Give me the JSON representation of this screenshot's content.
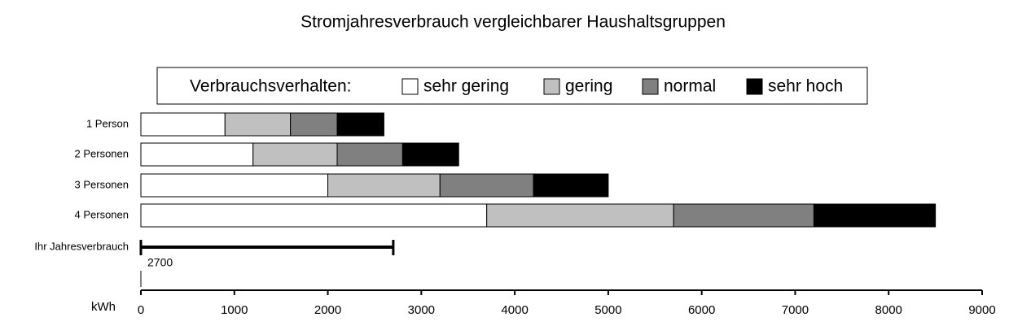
{
  "chart_data": {
    "type": "stacked-bar-horizontal",
    "title": "Stromjahresverbrauch vergleichbarer Haushaltsgruppen",
    "legend_title": "Verbrauchsverhalten:",
    "categories": [
      "1 Person",
      "2 Personen",
      "3 Personen",
      "4 Personen"
    ],
    "series": [
      {
        "name": "sehr gering",
        "color": "#ffffff",
        "values": [
          900,
          1200,
          2000,
          3700
        ]
      },
      {
        "name": "gering",
        "color": "#c0c0c0",
        "values": [
          700,
          900,
          1200,
          2000
        ]
      },
      {
        "name": "normal",
        "color": "#808080",
        "values": [
          500,
          700,
          1000,
          1500
        ]
      },
      {
        "name": "sehr hoch",
        "color": "#000000",
        "values": [
          500,
          600,
          800,
          1300
        ]
      }
    ],
    "your_consumption": {
      "label": "Ihr Jahresverbrauch",
      "value": 2700
    },
    "xlabel": "kWh",
    "xlim": [
      0,
      9000
    ],
    "xticks": [
      0,
      1000,
      2000,
      3000,
      4000,
      5000,
      6000,
      7000,
      8000,
      9000
    ],
    "legend_position": "top"
  }
}
